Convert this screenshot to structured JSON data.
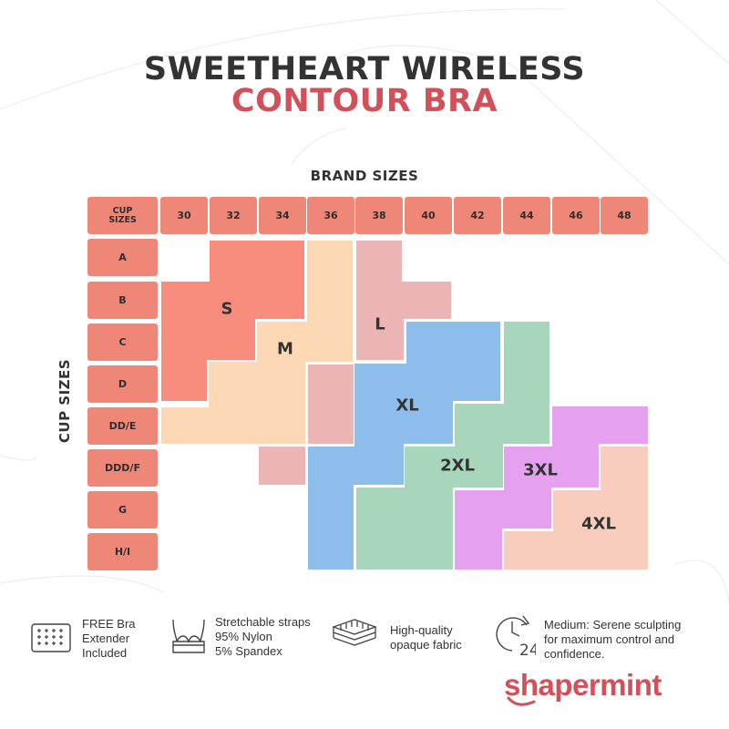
{
  "title": {
    "line1": "SWEETHEART WIRELESS",
    "line2": "CONTOUR BRA"
  },
  "brand_sizes_label": "BRAND SIZES",
  "cup_sizes_label": "CUP SIZES",
  "header_corner": "CUP SIZES",
  "band_sizes": [
    "30",
    "32",
    "34",
    "36",
    "38",
    "40",
    "42",
    "44",
    "46",
    "48"
  ],
  "cup_sizes": [
    "A",
    "B",
    "C",
    "D",
    "DD/E",
    "DDD/F",
    "G",
    "H/I"
  ],
  "size_zones": [
    {
      "label": "S",
      "color": "#f88d7e"
    },
    {
      "label": "M",
      "color": "#fcd8b4"
    },
    {
      "label": "L",
      "color": "#ebb5b6"
    },
    {
      "label": "XL",
      "color": "#8cbdeb"
    },
    {
      "label": "2XL",
      "color": "#a8d6bd"
    },
    {
      "label": "3XL",
      "color": "#e5a1f0"
    },
    {
      "label": "4XL",
      "color": "#f9cdbd"
    }
  ],
  "features": [
    {
      "icon": "bra-extender-icon",
      "text": [
        "FREE Bra",
        "Extender",
        "Included"
      ]
    },
    {
      "icon": "bra-straps-icon",
      "text": [
        "Stretchable straps",
        "95% Nylon",
        "5% Spandex"
      ]
    },
    {
      "icon": "fabric-layers-icon",
      "text": [
        "High-quality",
        "opaque fabric"
      ]
    },
    {
      "icon": "clock-24-icon",
      "text": [
        "Medium: Serene sculpting",
        "for maximum control and",
        "confidence."
      ]
    }
  ],
  "brand": {
    "logo_text": "shapermint"
  },
  "colors": {
    "header_cell": "#ee8777",
    "accent": "#d1505a",
    "text": "#333333"
  }
}
